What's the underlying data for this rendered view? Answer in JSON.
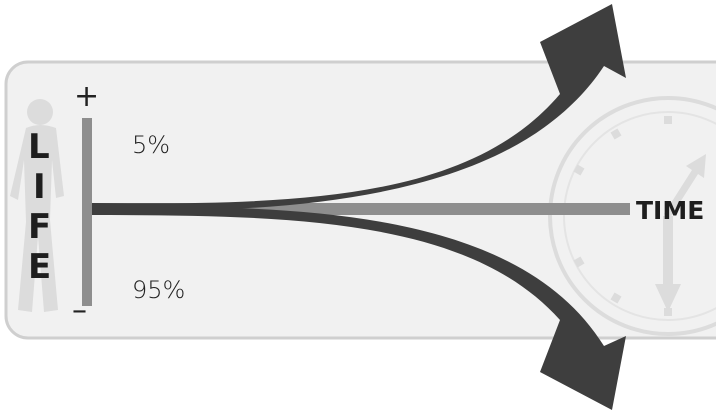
{
  "axis": {
    "vertical_label_letters": [
      "L",
      "I",
      "F",
      "E"
    ],
    "horizontal_label": "TIME",
    "plus_sign": "+",
    "minus_sign": "–"
  },
  "outcomes": {
    "upper_percent": "5%",
    "lower_percent": "95%"
  },
  "icons": {
    "background_left": "person-silhouette-icon",
    "background_right": "clock-icon"
  },
  "colors": {
    "panel_fill": "#f1f1f1",
    "panel_border": "#cfcfcf",
    "axis": "#8e8e8e",
    "arrow": "#3e3e3e",
    "watermark": "#dcdcdc"
  }
}
